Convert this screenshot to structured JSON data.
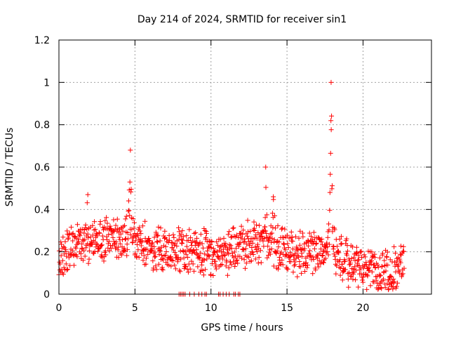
{
  "chart_data": {
    "type": "scatter",
    "title": "Day 214 of 2024, SRMTID for receiver sin1",
    "xlabel": "GPS time / hours",
    "ylabel": "SRMTID / TECUs",
    "xlim": [
      0,
      24.5
    ],
    "ylim": [
      0,
      1.2
    ],
    "xticks": [
      0,
      5,
      10,
      15,
      20
    ],
    "yticks": [
      0,
      0.2,
      0.4,
      0.6,
      0.8,
      1,
      1.2
    ],
    "ytick_labels": [
      "0",
      "0.2",
      "0.4",
      "0.6",
      "0.8",
      "1",
      "1.2"
    ],
    "grid": true,
    "marker": "+",
    "series_color": "#ff0000",
    "series": [
      {
        "name": "SRMTID",
        "baseline": [
          [
            0,
            0.2
          ],
          [
            2,
            0.24
          ],
          [
            3,
            0.26
          ],
          [
            4,
            0.27
          ],
          [
            5,
            0.26
          ],
          [
            6,
            0.22
          ],
          [
            7,
            0.2
          ],
          [
            8,
            0.2
          ],
          [
            9,
            0.21
          ],
          [
            10,
            0.18
          ],
          [
            11,
            0.19
          ],
          [
            12,
            0.22
          ],
          [
            13,
            0.25
          ],
          [
            14,
            0.23
          ],
          [
            15,
            0.2
          ],
          [
            16,
            0.19
          ],
          [
            17,
            0.2
          ],
          [
            18,
            0.2
          ],
          [
            19,
            0.15
          ],
          [
            20,
            0.12
          ],
          [
            21,
            0.1
          ],
          [
            22,
            0.11
          ],
          [
            22.7,
            0.17
          ]
        ],
        "spikes": [
          {
            "x": 1.9,
            "peak": 0.47
          },
          {
            "x": 4.7,
            "peak": 0.68
          },
          {
            "x": 13.6,
            "peak": 0.6
          },
          {
            "x": 14.1,
            "peak": 0.46
          },
          {
            "x": 17.9,
            "peak": 1.0
          }
        ],
        "zero_points_x": [
          7.9,
          8.0,
          8.1,
          8.2,
          8.3,
          8.6,
          8.9,
          9.2,
          9.4,
          9.6,
          9.7,
          10.5,
          10.6,
          10.8,
          11.0,
          11.2,
          11.5,
          11.6,
          11.8,
          11.9
        ],
        "x_range": [
          0,
          22.7
        ],
        "n_points": 1100
      }
    ]
  }
}
